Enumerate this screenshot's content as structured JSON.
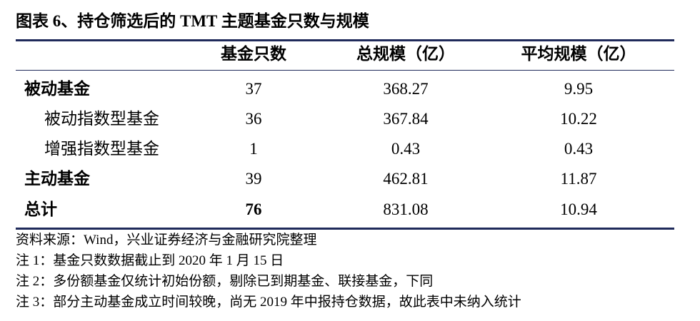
{
  "title": "图表 6、持仓筛选后的 TMT 主题基金只数与规模",
  "table": {
    "header": [
      "基金只数",
      "总规模（亿）",
      "平均规模（亿）"
    ],
    "rows": [
      [
        "被动基金",
        "37",
        "368.27",
        "9.95"
      ],
      [
        "被动指数型基金",
        "36",
        "367.84",
        "10.22"
      ],
      [
        "增强指数型基金",
        "1",
        "0.43",
        "0.43"
      ],
      [
        "主动基金",
        "39",
        "462.81",
        "11.87"
      ],
      [
        "总计",
        "76",
        "831.08",
        "10.94"
      ]
    ]
  },
  "notes": [
    "资料来源：Wind，兴业证券经济与金融研究院整理",
    "注 1：基金只数数据截止到 2020 年 1 月 15 日",
    "注 2：多份额基金仅统计初始份额，剔除已到期基金、联接基金，下同",
    "注 3：部分主动基金成立时间较晚，尚无 2019 年中报持仓数据，故此表中未纳入统计"
  ]
}
